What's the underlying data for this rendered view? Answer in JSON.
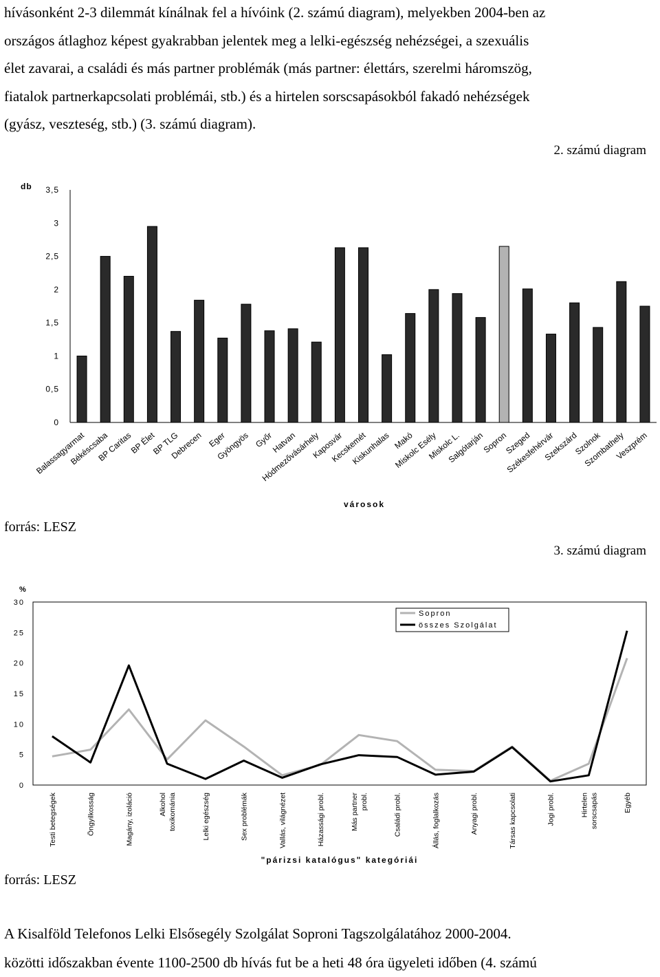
{
  "top_text": [
    "hívásonként 2-3 dilemmát kínálnak fel a hívóink (2. számú diagram), melyekben 2004-ben az",
    "országos átlaghoz képest gyakrabban jelentek meg a lelki-egészség nehézségei, a szexuális",
    "élet zavarai, a családi és más partner problémák (más partner: élettárs, szerelmi háromszög,",
    "fiatalok partnerkapcsolati problémái, stb.) és a hirtelen sorscsapásokból fakadó nehézségek",
    "(gyász, veszteség, stb.) (3. számú diagram)."
  ],
  "chart1": {
    "caption": "2. számú diagram",
    "source": "forrás: LESZ",
    "chart_data": {
      "type": "bar",
      "ylabel": "db",
      "xlabel": "városok",
      "ylim": [
        0,
        3.5
      ],
      "yticks": [
        "0",
        "0,5",
        "1",
        "1,5",
        "2",
        "2,5",
        "3",
        "3,5"
      ],
      "categories": [
        "Balassagyarmat",
        "Békéscsaba",
        "BP Caritas",
        "BP Élet",
        "BP TLG",
        "Debrecen",
        "Eger",
        "Gyöngyös",
        "Győr",
        "Hatvan",
        "Hódmezővásárhely",
        "Kaposvár",
        "Kecskemét",
        "Kiskunhalas",
        "Makó",
        "Miskolc Esély",
        "Miskolc L.",
        "Salgótarján",
        "Sopron",
        "Szeged",
        "Székesfehérvár",
        "Szekszárd",
        "Szolnok",
        "Szombathely",
        "Veszprém"
      ],
      "values": [
        1.0,
        2.5,
        2.2,
        2.95,
        1.37,
        1.84,
        1.27,
        1.78,
        1.38,
        1.41,
        1.21,
        2.63,
        2.63,
        1.02,
        1.64,
        2.0,
        1.94,
        1.58,
        2.65,
        2.01,
        1.33,
        1.8,
        1.43,
        2.12,
        1.75
      ],
      "highlight": {
        "category": "Sopron",
        "color": "#b3b3b3"
      },
      "bar_color": "#2a2a2a"
    }
  },
  "chart2": {
    "caption": "3. számú diagram",
    "source": "forrás: LESZ",
    "chart_data": {
      "type": "line",
      "ylabel": "%",
      "xlabel": "\"párizsi katalógus\" kategóriái",
      "ylim": [
        0,
        30
      ],
      "yticks": [
        "0",
        "5",
        "10",
        "15",
        "20",
        "25",
        "30"
      ],
      "categories": [
        "Testi betegségek",
        "Öngyilkosság",
        "Magány, izoláció",
        "Alkohol toxikománia",
        "Lelki egészség",
        "Sex problémák",
        "Vallás, világnézet",
        "Házassági probl.",
        "Más partner probl.",
        "Családi probl.",
        "Állás, foglalkozás",
        "Anyagi probl.",
        "Társas kapcsolati",
        "Jogi probl.",
        "Hirtelen sorscsapás",
        "Egyéb"
      ],
      "series": [
        {
          "name": "Sopron",
          "color": "#b3b3b3",
          "values": [
            4.7,
            5.8,
            12.4,
            4.2,
            10.6,
            6.3,
            1.6,
            3.3,
            8.2,
            7.2,
            2.5,
            2.3,
            6.3,
            0.7,
            3.5,
            20.8
          ]
        },
        {
          "name": "összes Szolgálat",
          "color": "#000000",
          "values": [
            8.0,
            3.7,
            19.6,
            3.5,
            1.0,
            4.0,
            1.2,
            3.4,
            4.9,
            4.6,
            1.7,
            2.2,
            6.2,
            0.6,
            1.6,
            25.3
          ]
        }
      ],
      "legend_position": "top-right"
    }
  },
  "footer_text": [
    "A Kisalföld Telefonos Lelki Elsősegély Szolgálat Soproni Tagszolgálatához 2000-2004.",
    "közötti időszakban évente 1100-2500 db hívás fut be a heti 48 óra ügyeleti időben (4. számú"
  ]
}
